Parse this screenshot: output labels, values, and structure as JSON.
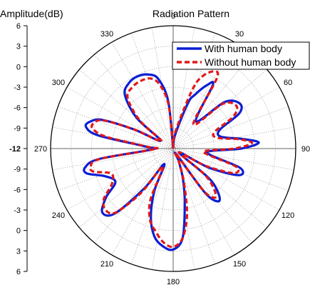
{
  "chart_data": {
    "type": "polar-line",
    "title": "Radiation Pattern",
    "radial_axis_label": "Amplitude(dB)",
    "radial_range": [
      -12,
      6
    ],
    "radial_ticks": [
      6,
      3,
      0,
      -3,
      -6,
      -9,
      -12,
      -9,
      -6,
      -3,
      0,
      3,
      6
    ],
    "angular_ticks": [
      0,
      30,
      60,
      90,
      120,
      150,
      180,
      210,
      240,
      270,
      300,
      330
    ],
    "grid": true,
    "legend_position": "top-right",
    "series": [
      {
        "name": "With human body",
        "color": "#0a1ed6",
        "style": "solid",
        "angles_deg": [
          0,
          8,
          18,
          22,
          28,
          32,
          40,
          48,
          56,
          62,
          68,
          76,
          82,
          86,
          90,
          94,
          100,
          106,
          112,
          118,
          124,
          130,
          138,
          144,
          150,
          156,
          162,
          168,
          174,
          180,
          186,
          192,
          198,
          204,
          210,
          216,
          222,
          228,
          234,
          240,
          248,
          254,
          258,
          262,
          268,
          274,
          280,
          284,
          288,
          292,
          296,
          302,
          310,
          318,
          326,
          334,
          342,
          348,
          354,
          360
        ],
        "amplitudes_db": [
          -12,
          -10,
          -5,
          -3.5,
          -1.5,
          -1,
          -6.8,
          -1.8,
          -0.2,
          -1,
          -4.6,
          -4.8,
          -1.8,
          0.6,
          -2,
          -6.6,
          -6.4,
          -1.8,
          -1.6,
          -6,
          -11,
          -4.8,
          -1.8,
          -3.8,
          -11,
          -10,
          -7.4,
          -3.8,
          1.2,
          2.8,
          2.4,
          1.2,
          -1.4,
          -5.2,
          -9.4,
          -4.8,
          0.8,
          2,
          0.2,
          -2.2,
          -1.2,
          1.2,
          1.2,
          -1,
          -9,
          -8,
          -0.8,
          1.2,
          0.8,
          -0.8,
          -5.6,
          -9.8,
          -5,
          -1.4,
          -0.4,
          -0.2,
          -0.6,
          -1.6,
          -5,
          -12
        ]
      },
      {
        "name": "Without human body",
        "color": "#e01818",
        "style": "dashed",
        "angles_deg": [
          0,
          8,
          18,
          22,
          28,
          32,
          40,
          48,
          56,
          62,
          68,
          76,
          82,
          86,
          90,
          94,
          100,
          106,
          112,
          118,
          124,
          130,
          138,
          144,
          150,
          156,
          162,
          168,
          174,
          180,
          186,
          192,
          198,
          204,
          210,
          216,
          222,
          228,
          234,
          240,
          248,
          254,
          258,
          262,
          268,
          274,
          280,
          284,
          288,
          292,
          296,
          302,
          310,
          318,
          326,
          334,
          342,
          348,
          354,
          360
        ],
        "amplitudes_db": [
          -12,
          -9.4,
          -3,
          -0.6,
          0.8,
          0,
          -7.4,
          -2.2,
          -0.8,
          -2,
          -5.4,
          -5.4,
          -2.2,
          -0.4,
          -3,
          -7.2,
          -6.8,
          -2.4,
          -2.4,
          -6.6,
          -11,
          -5.6,
          -2.6,
          -4.2,
          -11,
          -10,
          -7,
          -2.2,
          1.2,
          2.4,
          1.8,
          0.4,
          -1,
          -3.8,
          -9,
          -4,
          0.6,
          1.4,
          0.6,
          -1.6,
          -2.2,
          0.2,
          0.4,
          -1.2,
          -9.2,
          -8.2,
          -2,
          0.2,
          0.2,
          -1,
          -5.6,
          -10,
          -5.6,
          -2,
          -1.2,
          -1,
          -1.2,
          -2.4,
          -5.6,
          -12
        ]
      }
    ]
  }
}
